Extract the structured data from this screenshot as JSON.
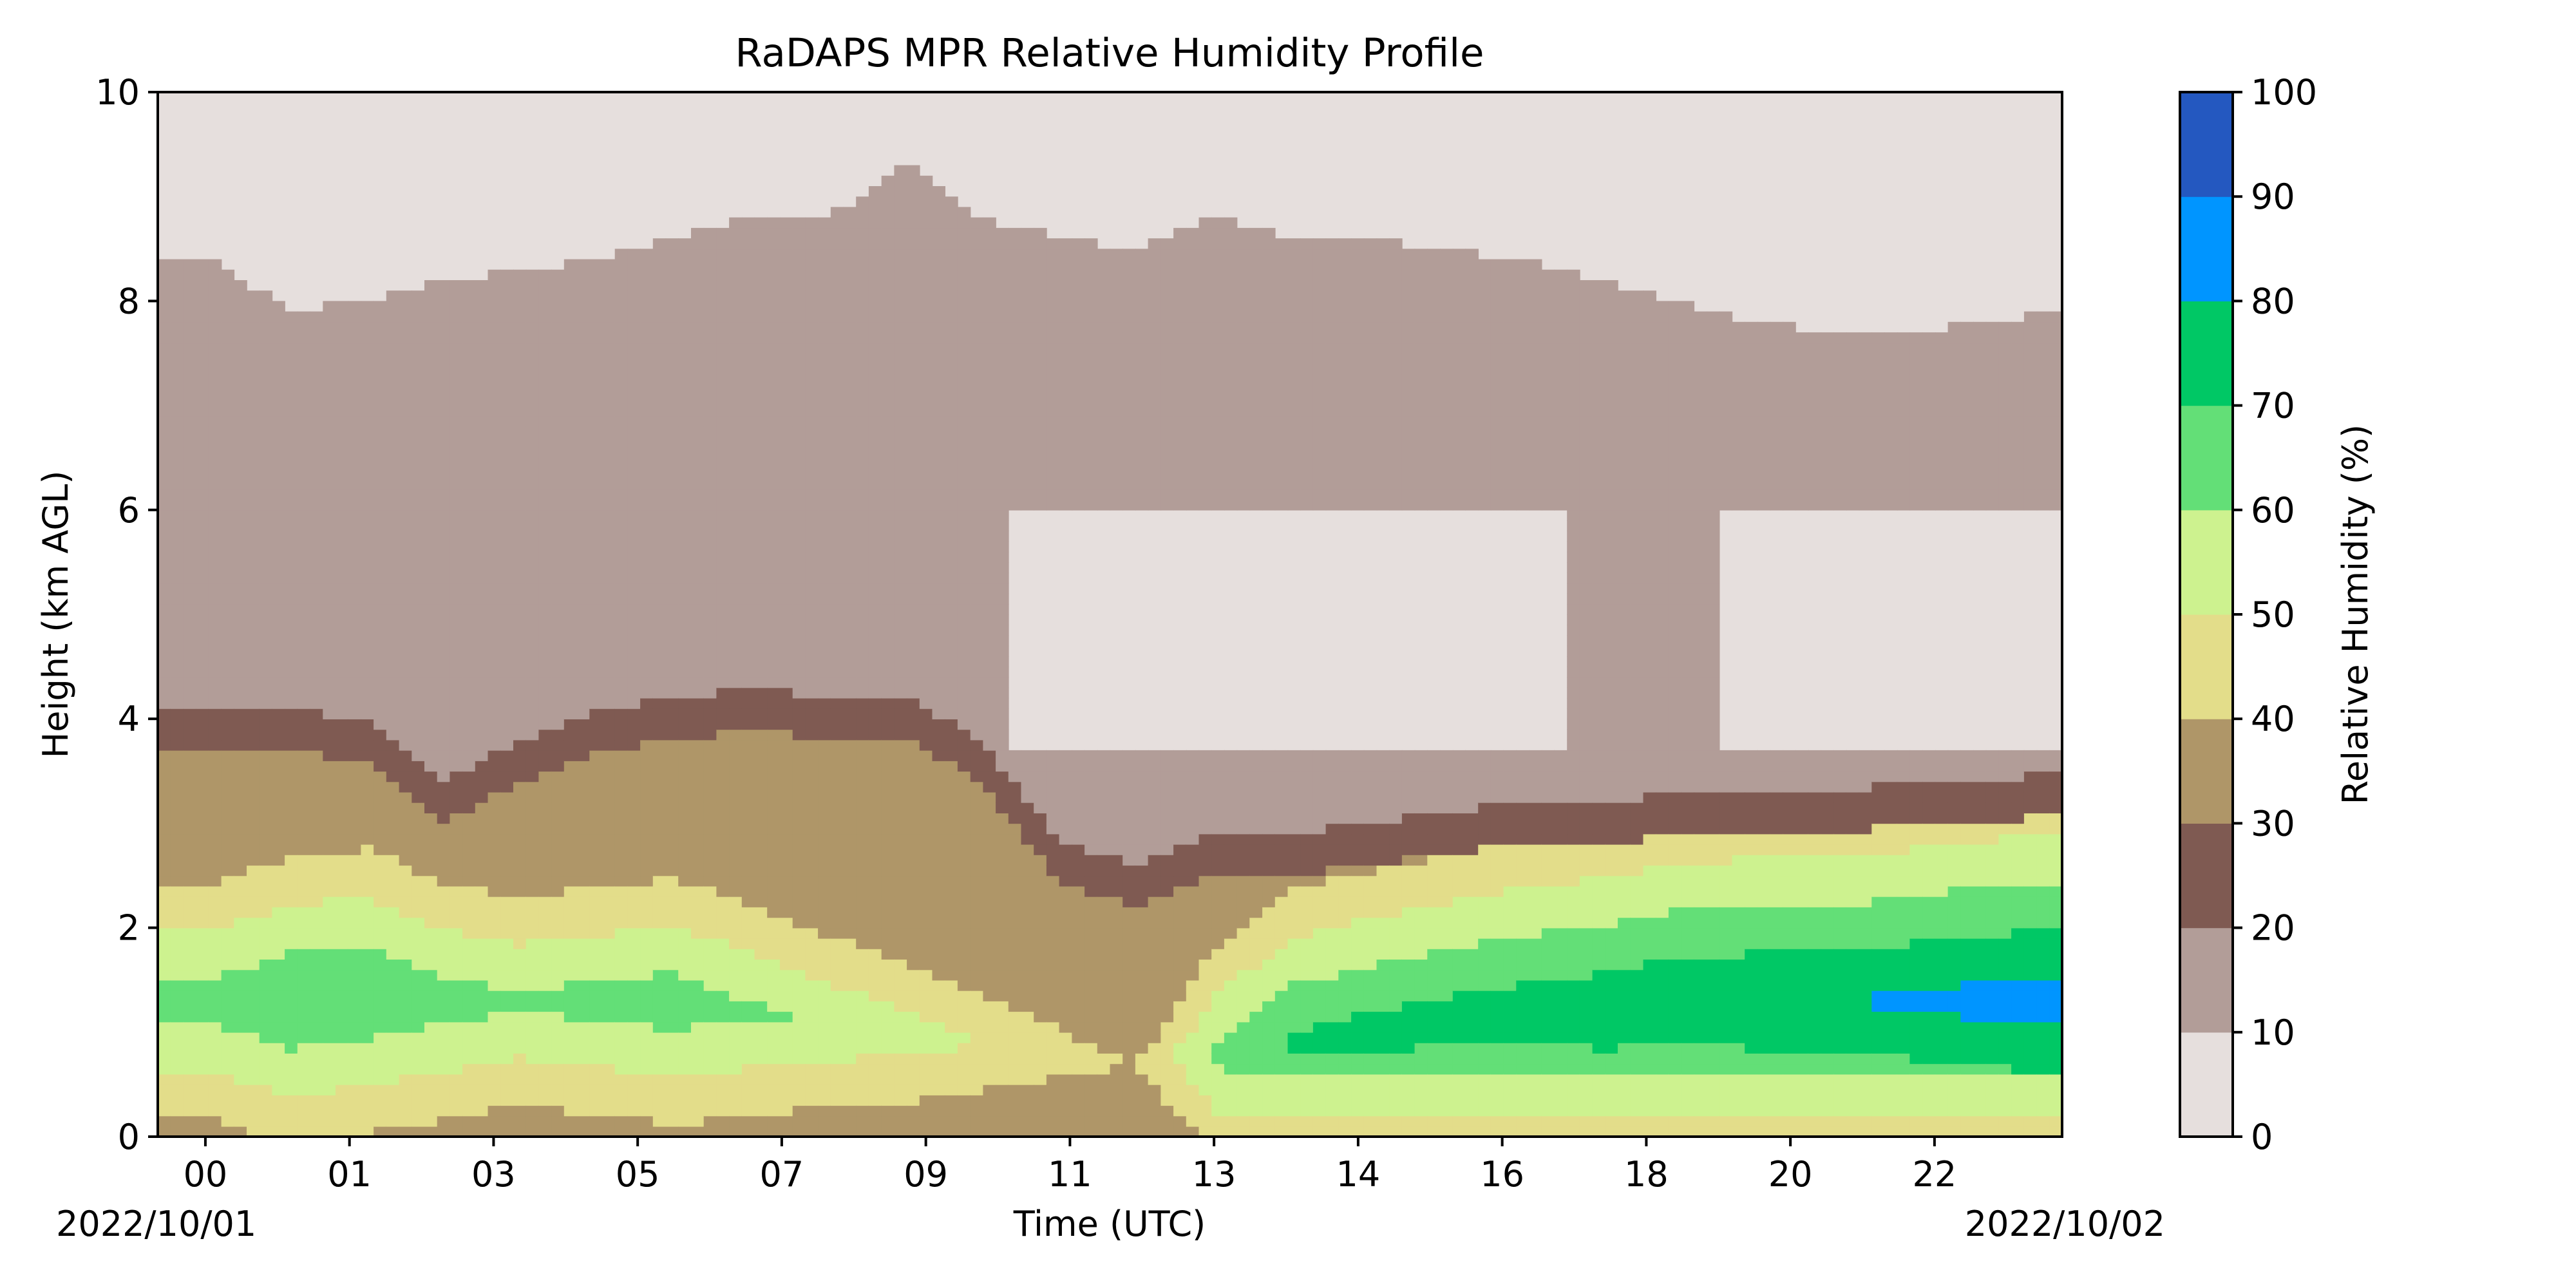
{
  "chart_data": {
    "type": "filled-contour",
    "title": "RaDAPS MPR Relative Humidity Profile",
    "xlabel": "Time (UTC)",
    "ylabel": "Height (km AGL)",
    "x_ticks": [
      "00",
      "01",
      "03",
      "05",
      "07",
      "09",
      "11",
      "13",
      "14",
      "16",
      "18",
      "20",
      "22"
    ],
    "x_start_date": "2022/10/01",
    "x_end_date": "2022/10/02",
    "ylim": [
      0,
      10
    ],
    "y_ticks": [
      0,
      2,
      4,
      6,
      8,
      10
    ],
    "colorbar": {
      "label": "Relative Humidity (%)",
      "levels": [
        0,
        10,
        20,
        30,
        40,
        50,
        60,
        70,
        80,
        90,
        100
      ],
      "colors": [
        "#e6dfdd",
        "#b29d98",
        "#7f5a52",
        "#af9668",
        "#e3dd8a",
        "#cdf28f",
        "#63df77",
        "#00c865",
        "#0095ff",
        "#2458c0"
      ]
    },
    "profile": {
      "x_hours": [
        0,
        1,
        2,
        3,
        4,
        5,
        6,
        7,
        8,
        9,
        10,
        11,
        12,
        13,
        14,
        15,
        16,
        17,
        18,
        19,
        20,
        21,
        22,
        23,
        24
      ],
      "top_of_20pct_layer_km": [
        8.4,
        7.9,
        8.0,
        8.2,
        8.3,
        8.4,
        8.6,
        8.8,
        8.8,
        9.3,
        8.8,
        8.6,
        8.5,
        8.8,
        8.6,
        8.6,
        8.5,
        8.4,
        8.2,
        8.0,
        7.8,
        7.7,
        7.7,
        7.8,
        7.9
      ],
      "top_of_30pct_layer_km": [
        3.7,
        3.7,
        3.6,
        3.0,
        3.4,
        3.7,
        3.8,
        3.9,
        3.8,
        3.8,
        3.4,
        2.4,
        2.2,
        2.5,
        2.5,
        2.6,
        2.7,
        2.8,
        2.8,
        2.9,
        2.9,
        2.9,
        3.0,
        3.0,
        3.1
      ],
      "humid_layer_peak_rh_pct": [
        65,
        70,
        70,
        65,
        62,
        64,
        66,
        62,
        58,
        55,
        50,
        45,
        40,
        62,
        72,
        74,
        75,
        76,
        78,
        79,
        80,
        80,
        82,
        84,
        85
      ],
      "humid_layer_center_km": [
        1.3,
        1.3,
        1.4,
        1.3,
        1.3,
        1.3,
        1.3,
        1.2,
        1.1,
        1.0,
        0.9,
        0.8,
        0.7,
        0.8,
        0.9,
        1.0,
        1.1,
        1.2,
        1.2,
        1.3,
        1.3,
        1.3,
        1.3,
        1.3,
        1.3
      ],
      "dry_region_upper_rh_pct": [
        15,
        12,
        15,
        15,
        15,
        15,
        15,
        15,
        15,
        15,
        12,
        6,
        5,
        6,
        6,
        6,
        7,
        8,
        12,
        13,
        8,
        5,
        5,
        5,
        5
      ]
    }
  }
}
